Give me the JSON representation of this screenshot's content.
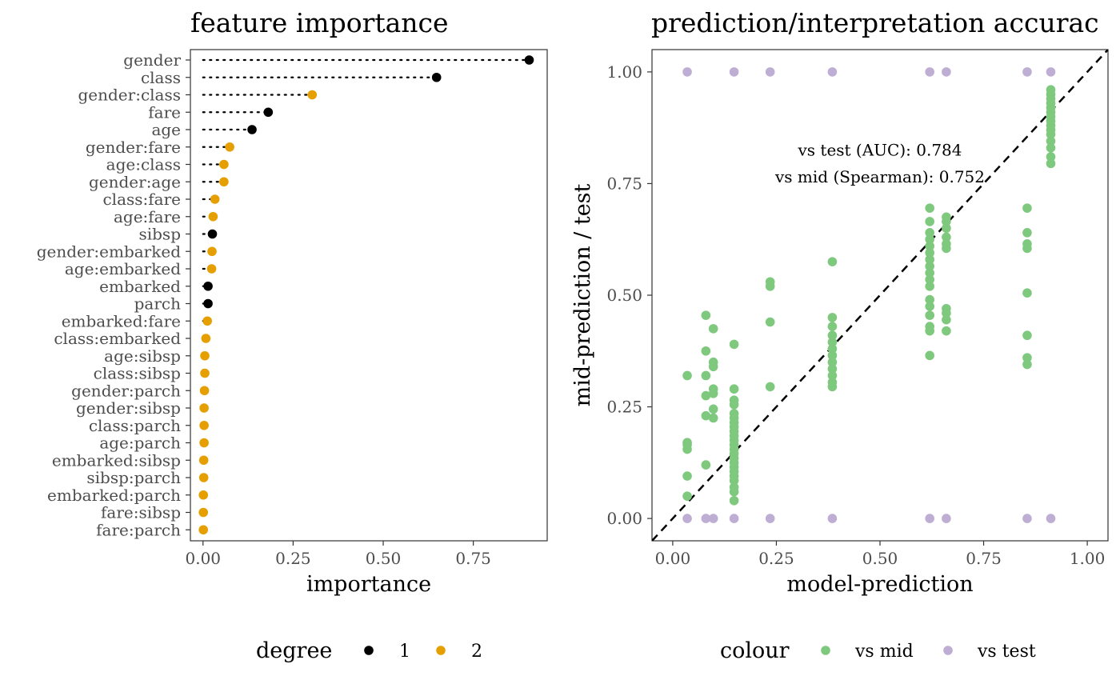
{
  "chart_data": [
    {
      "type": "lollipop",
      "title": "feature importance",
      "xlabel": "importance",
      "ylabel": "",
      "xlim": [
        -0.035,
        0.955
      ],
      "xticks": [
        0.0,
        0.25,
        0.5,
        0.75
      ],
      "xtick_labels": [
        "0.00",
        "0.25",
        "0.50",
        "0.75"
      ],
      "grid": false,
      "legend": {
        "title": "degree",
        "position": "bottom",
        "entries": [
          {
            "label": "1",
            "color": "#000000"
          },
          {
            "label": "2",
            "color": "#E69F00"
          }
        ]
      },
      "features": [
        {
          "name": "gender",
          "value": 0.905,
          "degree": 1
        },
        {
          "name": "class",
          "value": 0.648,
          "degree": 1
        },
        {
          "name": "gender:class",
          "value": 0.303,
          "degree": 2
        },
        {
          "name": "fare",
          "value": 0.181,
          "degree": 1
        },
        {
          "name": "age",
          "value": 0.136,
          "degree": 1
        },
        {
          "name": "gender:fare",
          "value": 0.074,
          "degree": 2
        },
        {
          "name": "age:class",
          "value": 0.058,
          "degree": 2
        },
        {
          "name": "gender:age",
          "value": 0.058,
          "degree": 2
        },
        {
          "name": "class:fare",
          "value": 0.033,
          "degree": 2
        },
        {
          "name": "age:fare",
          "value": 0.028,
          "degree": 2
        },
        {
          "name": "sibsp",
          "value": 0.026,
          "degree": 1
        },
        {
          "name": "gender:embarked",
          "value": 0.025,
          "degree": 2
        },
        {
          "name": "age:embarked",
          "value": 0.024,
          "degree": 2
        },
        {
          "name": "embarked",
          "value": 0.014,
          "degree": 1
        },
        {
          "name": "parch",
          "value": 0.014,
          "degree": 1
        },
        {
          "name": "embarked:fare",
          "value": 0.012,
          "degree": 2
        },
        {
          "name": "class:embarked",
          "value": 0.008,
          "degree": 2
        },
        {
          "name": "age:sibsp",
          "value": 0.005,
          "degree": 2
        },
        {
          "name": "class:sibsp",
          "value": 0.005,
          "degree": 2
        },
        {
          "name": "gender:parch",
          "value": 0.004,
          "degree": 2
        },
        {
          "name": "gender:sibsp",
          "value": 0.003,
          "degree": 2
        },
        {
          "name": "class:parch",
          "value": 0.003,
          "degree": 2
        },
        {
          "name": "age:parch",
          "value": 0.003,
          "degree": 2
        },
        {
          "name": "embarked:sibsp",
          "value": 0.002,
          "degree": 2
        },
        {
          "name": "sibsp:parch",
          "value": 0.002,
          "degree": 2
        },
        {
          "name": "embarked:parch",
          "value": 0.001,
          "degree": 2
        },
        {
          "name": "fare:sibsp",
          "value": 0.001,
          "degree": 2
        },
        {
          "name": "fare:parch",
          "value": 0.001,
          "degree": 2
        }
      ]
    },
    {
      "type": "scatter",
      "title": "prediction/interpretation accurac",
      "xlabel": "model-prediction",
      "ylabel": "mid-prediction / test",
      "xlim": [
        -0.05,
        1.05
      ],
      "ylim": [
        -0.05,
        1.05
      ],
      "xticks": [
        0.0,
        0.25,
        0.5,
        0.75,
        1.0
      ],
      "xtick_labels": [
        "0.00",
        "0.25",
        "0.50",
        "0.75",
        "1.00"
      ],
      "yticks": [
        0.0,
        0.25,
        0.5,
        0.75,
        1.0
      ],
      "ytick_labels": [
        "0.00",
        "0.25",
        "0.50",
        "0.75",
        "1.00"
      ],
      "grid": false,
      "reference_line": "y = x, dashed",
      "annotations": [
        {
          "text": "vs test (AUC): 0.784",
          "x": 0.5,
          "y": 0.825
        },
        {
          "text": "vs mid (Spearman): 0.752",
          "x": 0.5,
          "y": 0.765
        }
      ],
      "legend": {
        "title": "colour",
        "position": "bottom",
        "entries": [
          {
            "label": "vs mid",
            "color": "#7FC97F"
          },
          {
            "label": "vs test",
            "color": "#BEAED4"
          }
        ]
      },
      "series": [
        {
          "name": "vs mid",
          "color": "#7FC97F",
          "points": [
            [
              0.035,
              0.32
            ],
            [
              0.035,
              0.17
            ],
            [
              0.035,
              0.165
            ],
            [
              0.035,
              0.155
            ],
            [
              0.035,
              0.095
            ],
            [
              0.035,
              0.05
            ],
            [
              0.08,
              0.455
            ],
            [
              0.08,
              0.375
            ],
            [
              0.08,
              0.32
            ],
            [
              0.08,
              0.275
            ],
            [
              0.08,
              0.23
            ],
            [
              0.08,
              0.12
            ],
            [
              0.098,
              0.425
            ],
            [
              0.098,
              0.35
            ],
            [
              0.098,
              0.34
            ],
            [
              0.098,
              0.29
            ],
            [
              0.098,
              0.28
            ],
            [
              0.098,
              0.245
            ],
            [
              0.098,
              0.225
            ],
            [
              0.148,
              0.39
            ],
            [
              0.148,
              0.29
            ],
            [
              0.148,
              0.265
            ],
            [
              0.148,
              0.255
            ],
            [
              0.148,
              0.235
            ],
            [
              0.148,
              0.225
            ],
            [
              0.148,
              0.215
            ],
            [
              0.148,
              0.205
            ],
            [
              0.148,
              0.195
            ],
            [
              0.148,
              0.185
            ],
            [
              0.148,
              0.175
            ],
            [
              0.148,
              0.165
            ],
            [
              0.148,
              0.155
            ],
            [
              0.148,
              0.145
            ],
            [
              0.148,
              0.135
            ],
            [
              0.148,
              0.125
            ],
            [
              0.148,
              0.115
            ],
            [
              0.148,
              0.105
            ],
            [
              0.148,
              0.095
            ],
            [
              0.148,
              0.085
            ],
            [
              0.148,
              0.07
            ],
            [
              0.148,
              0.06
            ],
            [
              0.148,
              0.04
            ],
            [
              0.235,
              0.53
            ],
            [
              0.235,
              0.52
            ],
            [
              0.235,
              0.44
            ],
            [
              0.235,
              0.295
            ],
            [
              0.385,
              0.575
            ],
            [
              0.385,
              0.45
            ],
            [
              0.385,
              0.43
            ],
            [
              0.385,
              0.41
            ],
            [
              0.385,
              0.395
            ],
            [
              0.385,
              0.38
            ],
            [
              0.385,
              0.365
            ],
            [
              0.385,
              0.35
            ],
            [
              0.385,
              0.335
            ],
            [
              0.385,
              0.32
            ],
            [
              0.385,
              0.305
            ],
            [
              0.385,
              0.295
            ],
            [
              0.62,
              0.695
            ],
            [
              0.62,
              0.665
            ],
            [
              0.62,
              0.64
            ],
            [
              0.62,
              0.625
            ],
            [
              0.62,
              0.61
            ],
            [
              0.62,
              0.595
            ],
            [
              0.62,
              0.58
            ],
            [
              0.62,
              0.565
            ],
            [
              0.62,
              0.55
            ],
            [
              0.62,
              0.535
            ],
            [
              0.62,
              0.52
            ],
            [
              0.62,
              0.49
            ],
            [
              0.62,
              0.475
            ],
            [
              0.62,
              0.455
            ],
            [
              0.62,
              0.43
            ],
            [
              0.62,
              0.42
            ],
            [
              0.62,
              0.365
            ],
            [
              0.66,
              0.675
            ],
            [
              0.66,
              0.665
            ],
            [
              0.66,
              0.65
            ],
            [
              0.66,
              0.63
            ],
            [
              0.66,
              0.615
            ],
            [
              0.66,
              0.605
            ],
            [
              0.66,
              0.47
            ],
            [
              0.66,
              0.46
            ],
            [
              0.66,
              0.445
            ],
            [
              0.66,
              0.42
            ],
            [
              0.855,
              0.695
            ],
            [
              0.855,
              0.64
            ],
            [
              0.855,
              0.615
            ],
            [
              0.855,
              0.605
            ],
            [
              0.855,
              0.505
            ],
            [
              0.855,
              0.41
            ],
            [
              0.855,
              0.36
            ],
            [
              0.855,
              0.345
            ],
            [
              0.912,
              0.96
            ],
            [
              0.912,
              0.95
            ],
            [
              0.912,
              0.94
            ],
            [
              0.912,
              0.93
            ],
            [
              0.912,
              0.92
            ],
            [
              0.912,
              0.91
            ],
            [
              0.912,
              0.9
            ],
            [
              0.912,
              0.89
            ],
            [
              0.912,
              0.88
            ],
            [
              0.912,
              0.87
            ],
            [
              0.912,
              0.86
            ],
            [
              0.912,
              0.845
            ],
            [
              0.912,
              0.83
            ],
            [
              0.912,
              0.81
            ],
            [
              0.912,
              0.795
            ]
          ]
        },
        {
          "name": "vs test",
          "color": "#BEAED4",
          "points": [
            [
              0.035,
              1
            ],
            [
              0.148,
              1
            ],
            [
              0.235,
              1
            ],
            [
              0.385,
              1
            ],
            [
              0.62,
              1
            ],
            [
              0.66,
              1
            ],
            [
              0.855,
              1
            ],
            [
              0.912,
              1
            ],
            [
              0.035,
              0
            ],
            [
              0.08,
              0
            ],
            [
              0.098,
              0
            ],
            [
              0.148,
              0
            ],
            [
              0.235,
              0
            ],
            [
              0.385,
              0
            ],
            [
              0.62,
              0
            ],
            [
              0.66,
              0
            ],
            [
              0.855,
              0
            ],
            [
              0.912,
              0
            ]
          ]
        }
      ]
    }
  ]
}
